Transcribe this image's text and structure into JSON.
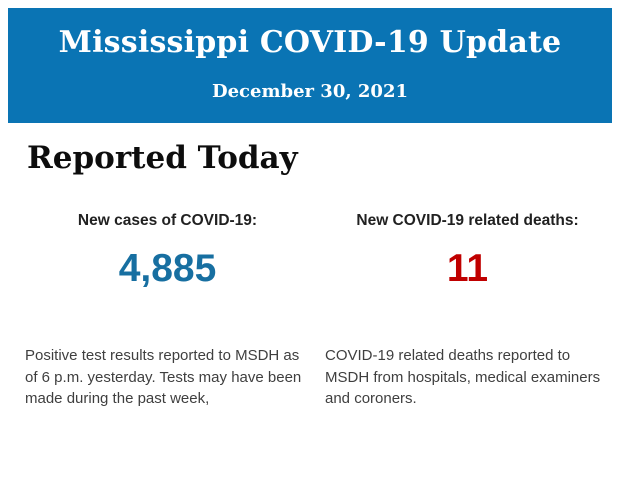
{
  "banner": {
    "title": "Mississippi COVID-19 Update",
    "date": "December 30, 2021",
    "background_color": "#0a74b4",
    "text_color": "#ffffff"
  },
  "section": {
    "heading": "Reported Today"
  },
  "stats": {
    "cases": {
      "label": "New cases of COVID-19:",
      "value": "4,885",
      "value_color": "#176fa1",
      "description": "Positive test results reported to MSDH as\nof 6 p.m. yesterday. Tests may have been\nmade during the past week,"
    },
    "deaths": {
      "label": "New COVID-19 related deaths:",
      "value": "11",
      "value_color": "#c00000",
      "description": "COVID-19 related deaths reported to\nMSDH from hospitals, medical examiners\nand coroners."
    }
  }
}
